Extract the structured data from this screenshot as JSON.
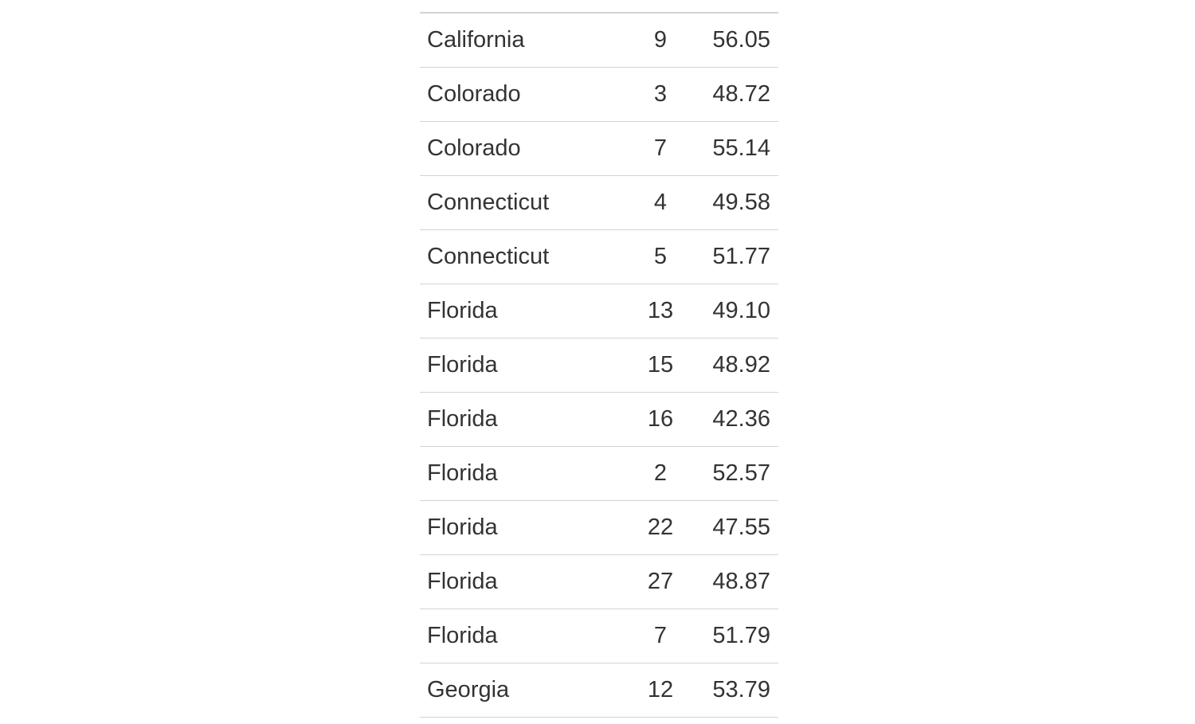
{
  "table": {
    "rows": [
      {
        "state": "California",
        "district": "9",
        "value": "56.05"
      },
      {
        "state": "Colorado",
        "district": "3",
        "value": "48.72"
      },
      {
        "state": "Colorado",
        "district": "7",
        "value": "55.14"
      },
      {
        "state": "Connecticut",
        "district": "4",
        "value": "49.58"
      },
      {
        "state": "Connecticut",
        "district": "5",
        "value": "51.77"
      },
      {
        "state": "Florida",
        "district": "13",
        "value": "49.10"
      },
      {
        "state": "Florida",
        "district": "15",
        "value": "48.92"
      },
      {
        "state": "Florida",
        "district": "16",
        "value": "42.36"
      },
      {
        "state": "Florida",
        "district": "2",
        "value": "52.57"
      },
      {
        "state": "Florida",
        "district": "22",
        "value": "47.55"
      },
      {
        "state": "Florida",
        "district": "27",
        "value": "48.87"
      },
      {
        "state": "Florida",
        "district": "7",
        "value": "51.79"
      },
      {
        "state": "Georgia",
        "district": "12",
        "value": "53.79"
      }
    ]
  }
}
